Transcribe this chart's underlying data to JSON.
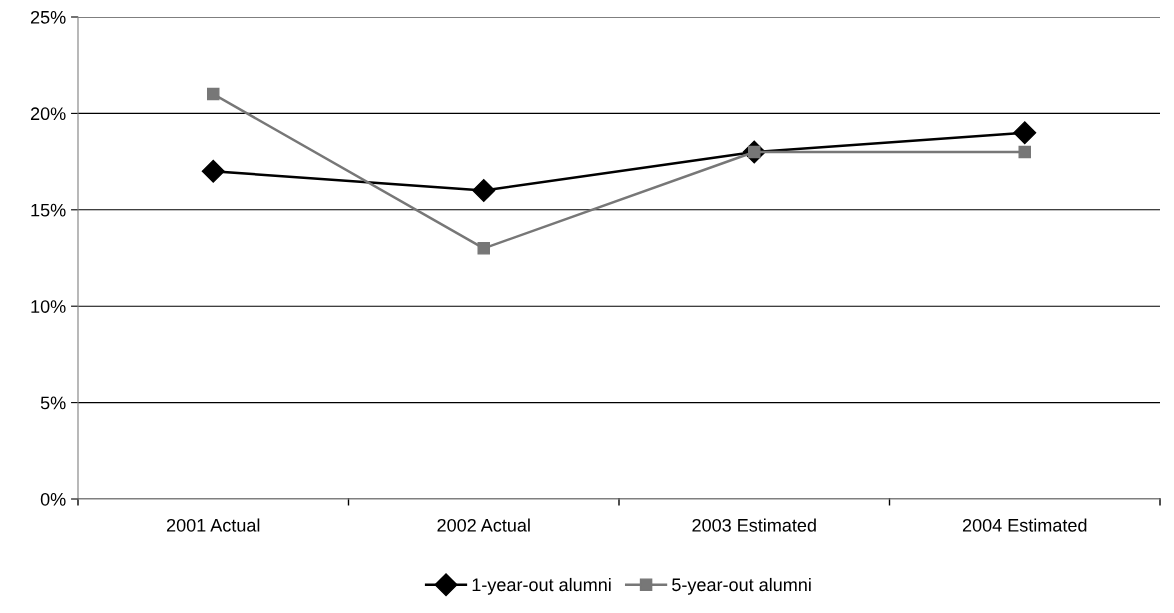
{
  "chart_data": {
    "type": "line",
    "categories": [
      "2001 Actual",
      "2002 Actual",
      "2003 Estimated",
      "2004 Estimated"
    ],
    "series": [
      {
        "name": "1-year-out alumni",
        "color": "#000000",
        "values": [
          17,
          16,
          18,
          19
        ],
        "marker": "diamond"
      },
      {
        "name": "5-year-out alumni",
        "color": "#777777",
        "values": [
          21,
          13,
          18,
          18
        ],
        "marker": "square"
      }
    ],
    "ylim": [
      0,
      25
    ],
    "yticks": [
      {
        "value": 0,
        "label": "0%"
      },
      {
        "value": 5,
        "label": "5%"
      },
      {
        "value": 10,
        "label": "10%"
      },
      {
        "value": 15,
        "label": "15%"
      },
      {
        "value": 20,
        "label": "20%"
      },
      {
        "value": 25,
        "label": "25%"
      }
    ],
    "grid": "y",
    "legend": "bottom",
    "line_style": "solid"
  }
}
